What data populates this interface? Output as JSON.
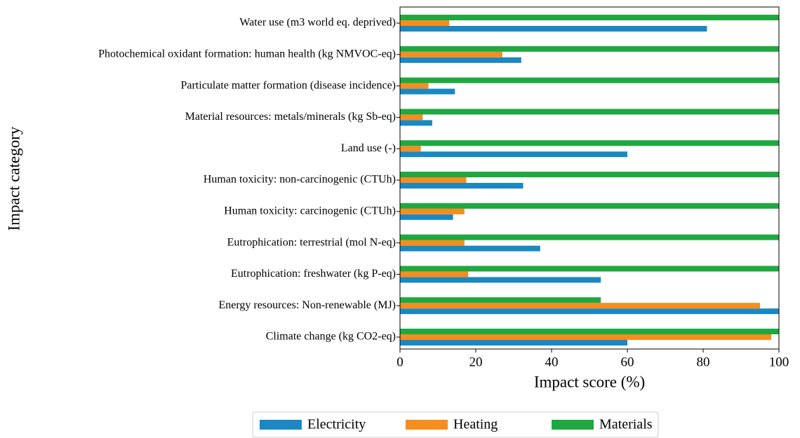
{
  "chart_data": {
    "type": "barh",
    "xlabel": "Impact score (%)",
    "ylabel": "Impact category",
    "categories": [
      "Water use (m3 world eq. deprived)",
      "Photochemical oxidant formation: human health (kg NMVOC-eq)",
      "Particulate matter formation (disease incidence)",
      "Material resources: metals/minerals (kg Sb-eq)",
      "Land use (-)",
      "Human toxicity: non-carcinogenic (CTUh)",
      "Human toxicity: carcinogenic (CTUh)",
      "Eutrophication: terrestrial (mol N-eq)",
      "Eutrophication: freshwater (kg P-eq)",
      "Energy resources: Non-renewable (MJ)",
      "Climate change (kg CO2-eq)"
    ],
    "series": [
      {
        "name": "Electricity",
        "color": "#1b88c2",
        "values": [
          81,
          32,
          14.5,
          8.5,
          60,
          32.5,
          14,
          37,
          53,
          100,
          60
        ]
      },
      {
        "name": "Heating",
        "color": "#f58d1f",
        "values": [
          13,
          27,
          7.5,
          6,
          5.5,
          17.5,
          17,
          17,
          18,
          95,
          98
        ]
      },
      {
        "name": "Materials",
        "color": "#1fa83f",
        "values": [
          100,
          100,
          100,
          100,
          100,
          100,
          100,
          100,
          100,
          53,
          100
        ]
      }
    ],
    "xlim": [
      0,
      100
    ],
    "xticks": [
      0,
      20,
      40,
      60,
      80,
      100
    ],
    "legend": "bottom"
  }
}
